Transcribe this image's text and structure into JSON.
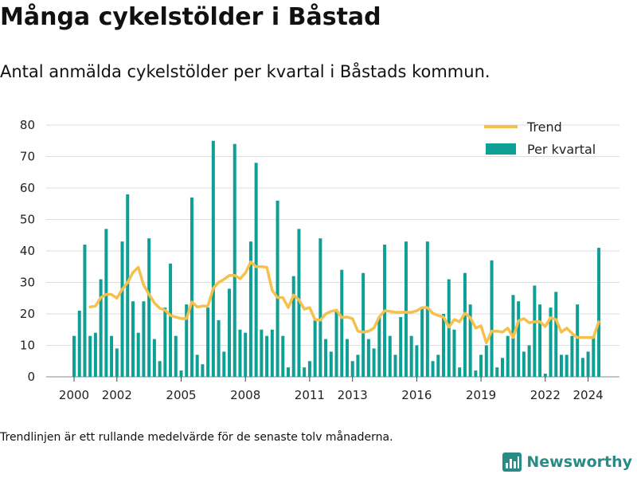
{
  "title": "Många cykelstölder i Båstad",
  "subtitle": "Antal anmälda cykelstölder per kvartal i Båstads kommun.",
  "footnote": "Trendlinjen är ett rullande medelvärde för de senaste tolv månaderna.",
  "brand": "Newsworthy",
  "colors": {
    "bars": "#0e9f95",
    "trend": "#f5c04c",
    "brand": "#2a8a86",
    "grid": "#dddddd"
  },
  "chart_data": {
    "type": "bar",
    "x_start": 2000.0,
    "x_step": 0.25,
    "ylim": [
      0,
      80
    ],
    "yticks": [
      0,
      10,
      20,
      30,
      40,
      50,
      60,
      70,
      80
    ],
    "xticks": [
      {
        "label": "2000",
        "x": 2000.0
      },
      {
        "label": "2002",
        "x": 2002.0
      },
      {
        "label": "2005",
        "x": 2005.0
      },
      {
        "label": "2008",
        "x": 2008.0
      },
      {
        "label": "2011",
        "x": 2011.0
      },
      {
        "label": "2013",
        "x": 2013.0
      },
      {
        "label": "2016",
        "x": 2016.0
      },
      {
        "label": "2019",
        "x": 2019.0
      },
      {
        "label": "2022",
        "x": 2022.0
      },
      {
        "label": "2024",
        "x": 2024.0
      }
    ],
    "legend": {
      "position": "top-right",
      "entries": [
        "Trend",
        "Per kvartal"
      ]
    },
    "series": [
      {
        "name": "Per kvartal",
        "kind": "bar",
        "values": [
          13,
          21,
          42,
          13,
          14,
          31,
          47,
          13,
          9,
          43,
          58,
          24,
          14,
          24,
          44,
          12,
          5,
          22,
          36,
          13,
          2,
          23,
          57,
          7,
          4,
          22,
          75,
          18,
          8,
          28,
          74,
          15,
          14,
          43,
          68,
          15,
          13,
          15,
          56,
          13,
          3,
          32,
          47,
          3,
          5,
          18,
          44,
          12,
          8,
          21,
          34,
          12,
          5,
          7,
          33,
          12,
          9,
          19,
          42,
          13,
          7,
          19,
          43,
          13,
          10,
          22,
          43,
          5,
          7,
          20,
          31,
          15,
          3,
          33,
          23,
          2,
          7,
          10,
          37,
          3,
          6,
          13,
          26,
          24,
          8,
          10,
          29,
          23,
          1,
          22,
          27,
          7,
          7,
          13,
          23,
          6,
          8,
          13,
          41
        ]
      },
      {
        "name": "Trend",
        "kind": "line",
        "start_index": 3,
        "values": [
          22.2,
          22.5,
          25.2,
          26.2,
          26.2,
          25.0,
          27.8,
          30.0,
          33.2,
          34.8,
          29.2,
          26.2,
          23.5,
          21.8,
          21.2,
          19.5,
          19.0,
          18.5,
          18.5,
          23.8,
          22.2,
          22.5,
          22.5,
          28.2,
          30.0,
          31.0,
          32.2,
          32.2,
          31.2,
          33.0,
          36.5,
          35.0,
          35.0,
          34.8,
          27.5,
          25.2,
          25.2,
          22.0,
          26.0,
          24.5,
          21.5,
          22.0,
          18.2,
          18.0,
          20.0,
          20.8,
          21.2,
          18.8,
          19.0,
          18.5,
          14.5,
          14.2,
          14.5,
          15.5,
          19.0,
          21.0,
          20.8,
          20.5,
          20.5,
          20.5,
          20.5,
          21.0,
          22.0,
          22.0,
          20.2,
          19.5,
          19.0,
          15.8,
          18.2,
          17.5,
          20.2,
          18.8,
          15.5,
          16.2,
          10.8,
          14.5,
          14.5,
          14.2,
          15.5,
          12.5,
          17.8,
          18.5,
          17.2,
          17.5,
          17.5,
          16.0,
          18.8,
          18.2,
          14.2,
          15.5,
          13.8,
          12.5,
          12.5,
          12.5,
          12.5,
          17.5
        ]
      }
    ]
  }
}
